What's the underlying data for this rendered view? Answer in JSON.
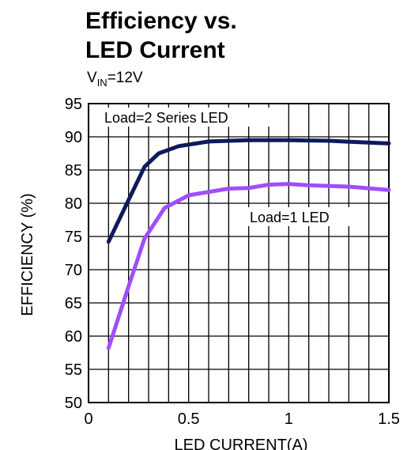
{
  "chart_data": {
    "type": "line",
    "title_line1": "Efficiency vs.",
    "title_line2": "LED Current",
    "subtitle_var": "V",
    "subtitle_sub": "IN",
    "subtitle_rest": "=12V",
    "xlabel": "LED CURRENT(A)",
    "ylabel": "EFFICIENCY (%)",
    "xlim": [
      0,
      1.5
    ],
    "ylim": [
      50,
      95
    ],
    "x_ticks": [
      "0",
      "0.5",
      "1",
      "1.5"
    ],
    "x_tick_values": [
      0,
      0.5,
      1.0,
      1.5
    ],
    "y_ticks": [
      "50",
      "55",
      "60",
      "65",
      "70",
      "75",
      "80",
      "85",
      "90",
      "95"
    ],
    "y_tick_values": [
      50,
      55,
      60,
      65,
      70,
      75,
      80,
      85,
      90,
      95
    ],
    "x_grid_step": 0.1,
    "y_grid_step": 5,
    "grid": true,
    "series": [
      {
        "label": "Load=2 Series LED",
        "color": "#0d1a5c",
        "x": [
          0.1,
          0.2,
          0.28,
          0.35,
          0.45,
          0.6,
          0.8,
          1.0,
          1.2,
          1.35,
          1.5
        ],
        "y": [
          74.2,
          80.5,
          85.5,
          87.5,
          88.6,
          89.3,
          89.5,
          89.5,
          89.4,
          89.2,
          89.0
        ]
      },
      {
        "label": "Load=1 LED",
        "color": "#a14dff",
        "x": [
          0.1,
          0.2,
          0.28,
          0.38,
          0.5,
          0.7,
          0.8,
          0.9,
          1.0,
          1.1,
          1.3,
          1.5
        ],
        "y": [
          58.2,
          67.5,
          74.7,
          79.3,
          81.2,
          82.2,
          82.3,
          82.8,
          82.9,
          82.7,
          82.5,
          82.0
        ]
      }
    ]
  }
}
